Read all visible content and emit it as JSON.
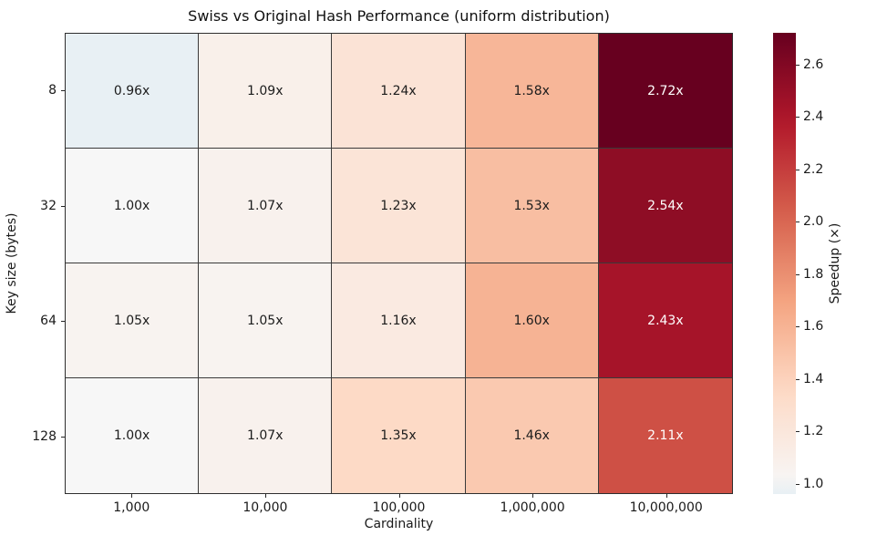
{
  "chart_data": {
    "type": "heatmap",
    "title": "Swiss vs Original Hash Performance (uniform distribution)",
    "xlabel": "Cardinality",
    "ylabel": "Key size (bytes)",
    "x_categories": [
      "1,000",
      "10,000",
      "100,000",
      "1,000,000",
      "10,000,000"
    ],
    "y_categories": [
      "8",
      "32",
      "64",
      "128"
    ],
    "values": [
      [
        0.96,
        1.09,
        1.24,
        1.58,
        2.72
      ],
      [
        1.0,
        1.07,
        1.23,
        1.53,
        2.54
      ],
      [
        1.05,
        1.05,
        1.16,
        1.6,
        2.43
      ],
      [
        1.0,
        1.07,
        1.35,
        1.46,
        2.11
      ]
    ],
    "cell_labels": [
      [
        "0.96x",
        "1.09x",
        "1.24x",
        "1.58x",
        "2.72x"
      ],
      [
        "1.00x",
        "1.07x",
        "1.23x",
        "1.53x",
        "2.54x"
      ],
      [
        "1.05x",
        "1.05x",
        "1.16x",
        "1.60x",
        "2.43x"
      ],
      [
        "1.00x",
        "1.07x",
        "1.35x",
        "1.46x",
        "2.11x"
      ]
    ],
    "colorbar": {
      "label": "Speedup (×)",
      "tick_labels": [
        "1.0",
        "1.2",
        "1.4",
        "1.6",
        "1.8",
        "2.0",
        "2.2",
        "2.4",
        "2.6"
      ],
      "tick_values": [
        1.0,
        1.2,
        1.4,
        1.6,
        1.8,
        2.0,
        2.2,
        2.4,
        2.6
      ],
      "vmin": 0.96,
      "vmax": 2.72
    },
    "colormap": {
      "name": "RdBu_r",
      "anchors": [
        "#053061",
        "#2166ac",
        "#4393c3",
        "#92c5de",
        "#d1e5f0",
        "#f7f7f7",
        "#fddbc7",
        "#f4a582",
        "#d6604d",
        "#b2182b",
        "#67001f"
      ],
      "center_value": 1.0,
      "norm_vmin": 0.5,
      "norm_vmax": 2.72
    },
    "grid": true,
    "legend_position": "right-colorbar"
  }
}
